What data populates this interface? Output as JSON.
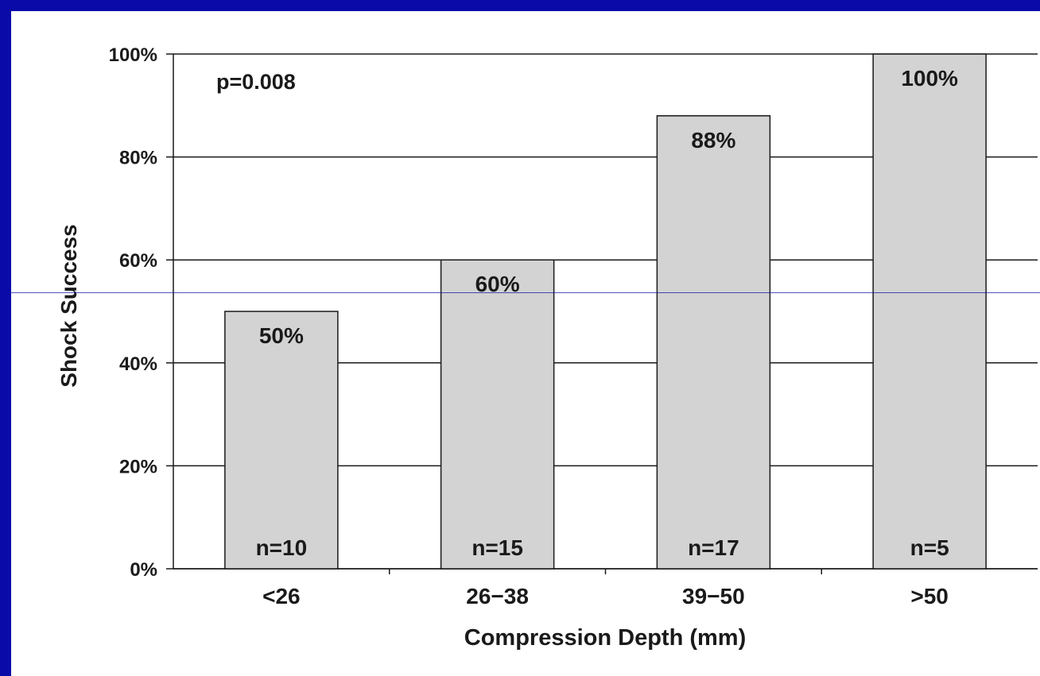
{
  "slide": {
    "frame_color": "#0a0aa8",
    "background": "#ffffff"
  },
  "chart_data": {
    "type": "bar",
    "xlabel": "Compression Depth (mm)",
    "ylabel": "Shock Success",
    "annotation": "p=0.008",
    "categories": [
      "<26",
      "26−38",
      "39−50",
      ">50"
    ],
    "values": [
      50,
      60,
      88,
      100
    ],
    "value_labels": [
      "50%",
      "60%",
      "88%",
      "100%"
    ],
    "sample_labels": [
      "n=10",
      "n=15",
      "n=17",
      "n=5"
    ],
    "y_ticks": [
      "0%",
      "20%",
      "40%",
      "60%",
      "80%",
      "100%"
    ],
    "ylim": [
      0,
      100
    ],
    "grid": true,
    "bar_color": "#d3d3d3",
    "bar_edge_color": "#1a1a1a"
  }
}
